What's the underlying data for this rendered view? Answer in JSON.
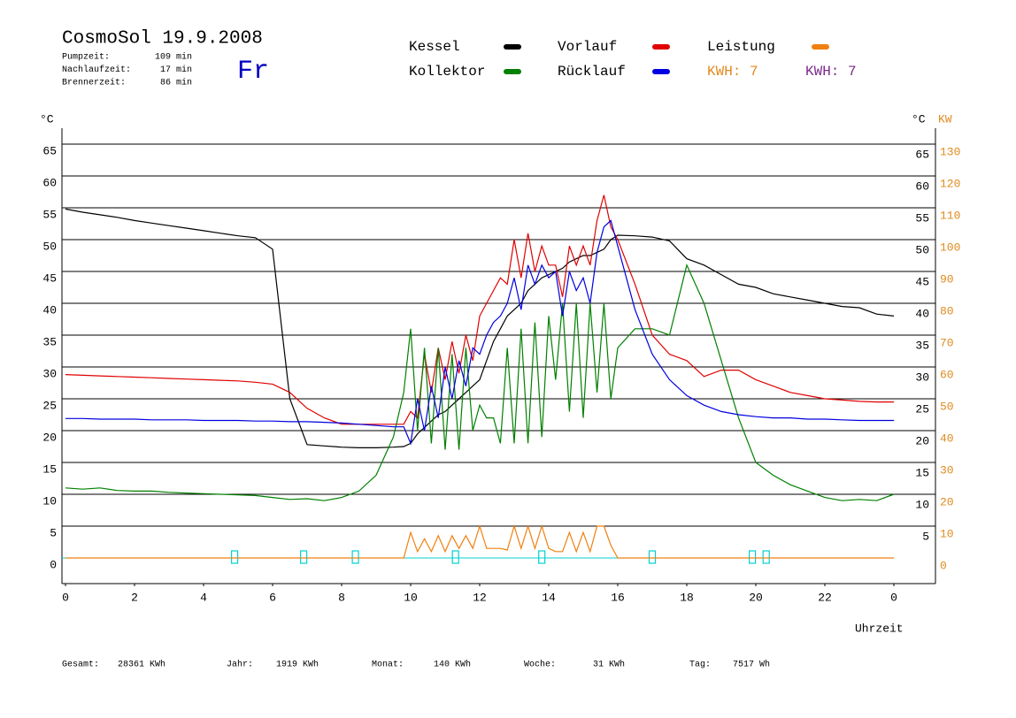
{
  "chart_data": {
    "type": "line",
    "title": "CosmoSol 19.9.2008",
    "day": "Fr",
    "stats": [
      {
        "label": "Pumpzeit:",
        "value": "109 min"
      },
      {
        "label": "Nachlaufzeit:",
        "value": "17 min"
      },
      {
        "label": "Brennerzeit:",
        "value": "86 min"
      }
    ],
    "y_unit": "°C",
    "y_right_unit": "°C",
    "y2_unit": "KW",
    "x_label": "Uhrzeit",
    "kwh_labels": [
      {
        "text": "KWH: 7",
        "color": "#e08a1e"
      },
      {
        "text": "KWH: 7",
        "color": "#7a2a8a"
      }
    ],
    "totals": [
      {
        "label": "Gesamt:",
        "value": "28361 KWh"
      },
      {
        "label": "Jahr:",
        "value": "1919 KWh"
      },
      {
        "label": "Monat:",
        "value": "140 KWh"
      },
      {
        "label": "Woche:",
        "value": "31 KWh"
      },
      {
        "label": "Tag:",
        "value": "7517 Wh"
      }
    ],
    "xlim": [
      0,
      24
    ],
    "xticks": [
      0,
      2,
      4,
      6,
      8,
      10,
      12,
      14,
      16,
      18,
      20,
      22,
      {
        "value": 24,
        "label": "0"
      }
    ],
    "ylim": [
      0,
      65
    ],
    "yticks": [
      0,
      5,
      10,
      15,
      20,
      25,
      30,
      35,
      40,
      45,
      50,
      55,
      60,
      65
    ],
    "y_right_ticks": [
      5,
      10,
      15,
      20,
      25,
      30,
      35,
      40,
      45,
      50,
      55,
      60,
      65
    ],
    "y2lim": [
      0,
      130
    ],
    "y2ticks": [
      0,
      10,
      20,
      30,
      40,
      50,
      60,
      70,
      80,
      90,
      100,
      110,
      120,
      130
    ],
    "grid": true,
    "pump_markers": [
      4.9,
      6.9,
      8.4,
      11.3,
      13.8,
      17.0,
      19.9,
      20.3
    ],
    "pump_color": "#00d0d0",
    "x": [
      0,
      0.5,
      1,
      1.5,
      2,
      2.5,
      3,
      3.5,
      4,
      4.5,
      5,
      5.5,
      6,
      6.5,
      7,
      7.5,
      8,
      8.5,
      9,
      9.5,
      9.8,
      10,
      10.2,
      10.4,
      10.6,
      10.8,
      11,
      11.2,
      11.4,
      11.6,
      11.8,
      12,
      12.2,
      12.4,
      12.6,
      12.8,
      13,
      13.2,
      13.4,
      13.6,
      13.8,
      14,
      14.2,
      14.4,
      14.6,
      14.8,
      15,
      15.2,
      15.4,
      15.6,
      15.8,
      16,
      16.5,
      17,
      17.5,
      18,
      18.5,
      19,
      19.5,
      20,
      20.5,
      21,
      21.5,
      22,
      22.5,
      23,
      23.5,
      24
    ],
    "series": [
      {
        "name": "Kessel",
        "color": "#000000",
        "values": [
          54.8,
          54.3,
          53.9,
          53.5,
          53.0,
          52.6,
          52.2,
          51.8,
          51.4,
          51.0,
          50.6,
          50.3,
          48.5,
          25,
          17.8,
          17.6,
          17.4,
          17.3,
          17.3,
          17.4,
          17.5,
          18,
          19.5,
          20.5,
          21.5,
          22.5,
          23,
          24,
          25,
          26,
          27,
          28,
          31,
          34,
          36,
          38,
          39,
          40,
          42,
          43,
          44,
          44.5,
          45,
          45.5,
          46.5,
          47,
          47.5,
          47.5,
          48,
          48.5,
          50,
          50.7,
          50.6,
          50.4,
          49.8,
          47,
          46,
          44.5,
          43,
          42.5,
          41.5,
          41,
          40.5,
          40,
          39.5,
          39.3,
          38.3,
          38
        ]
      },
      {
        "name": "Vorlauf",
        "color": "#e00000",
        "values": [
          28.8,
          28.7,
          28.6,
          28.5,
          28.4,
          28.3,
          28.2,
          28.1,
          28.0,
          27.9,
          27.8,
          27.6,
          27.3,
          26,
          23.5,
          22,
          21,
          21,
          21,
          21,
          21,
          23,
          22,
          32,
          26,
          33,
          28,
          34,
          29,
          35,
          31,
          38,
          40,
          42,
          44,
          43,
          50,
          44,
          51,
          45,
          49,
          46,
          46,
          41,
          49,
          46,
          49,
          46,
          53,
          57,
          52,
          50,
          43,
          35,
          32,
          31,
          28.5,
          29.5,
          29.5,
          28,
          27,
          26,
          25.5,
          25,
          24.8,
          24.6,
          24.5,
          24.5
        ]
      },
      {
        "name": "Leistung",
        "color": "#f08010",
        "axis": "y2",
        "values": [
          0,
          0,
          0,
          0,
          0,
          0,
          0,
          0,
          0,
          0,
          0,
          0,
          0,
          0,
          0,
          0,
          0,
          0,
          0,
          0,
          0,
          8,
          2,
          6,
          2,
          7,
          2,
          7,
          3,
          7,
          3,
          10,
          3,
          3,
          3,
          2.5,
          10,
          3,
          10,
          3,
          10,
          3,
          2,
          2,
          8,
          2,
          8,
          2,
          10,
          10,
          4,
          0,
          0,
          0,
          0,
          0,
          0,
          0,
          0,
          0,
          0,
          0,
          0,
          0,
          0,
          0,
          0,
          0
        ]
      },
      {
        "name": "Kollektor",
        "color": "#008000",
        "values": [
          11,
          10.8,
          11,
          10.6,
          10.5,
          10.5,
          10.3,
          10.2,
          10.1,
          10,
          9.9,
          9.8,
          9.5,
          9.2,
          9.3,
          9,
          9.5,
          10.5,
          13,
          19,
          26,
          36,
          20,
          33,
          18,
          33,
          17,
          32,
          17,
          33,
          20,
          24,
          22,
          22,
          18,
          33,
          18,
          36,
          18,
          37,
          19,
          38,
          28,
          40,
          23,
          40,
          22,
          40,
          26,
          40,
          25,
          33,
          36,
          36,
          35,
          46,
          40,
          31,
          22,
          15,
          13,
          11.5,
          10.5,
          9.5,
          9,
          9.2,
          9,
          10
        ]
      },
      {
        "name": "Rücklauf",
        "color": "#0000e0",
        "values": [
          21.9,
          21.9,
          21.8,
          21.8,
          21.8,
          21.7,
          21.7,
          21.7,
          21.6,
          21.6,
          21.6,
          21.5,
          21.5,
          21.4,
          21.4,
          21.3,
          21.2,
          21.0,
          20.8,
          20.6,
          20.6,
          18,
          25,
          20,
          27,
          22,
          30,
          25,
          31,
          27,
          33,
          32,
          35,
          37,
          38,
          40,
          44,
          39,
          46,
          43,
          46,
          44,
          45,
          38,
          45,
          42,
          44,
          40,
          48,
          52,
          53,
          49,
          39,
          32,
          28,
          25.5,
          24,
          23,
          22.5,
          22.2,
          22,
          22,
          21.8,
          21.8,
          21.7,
          21.6,
          21.6,
          21.6
        ]
      }
    ]
  }
}
